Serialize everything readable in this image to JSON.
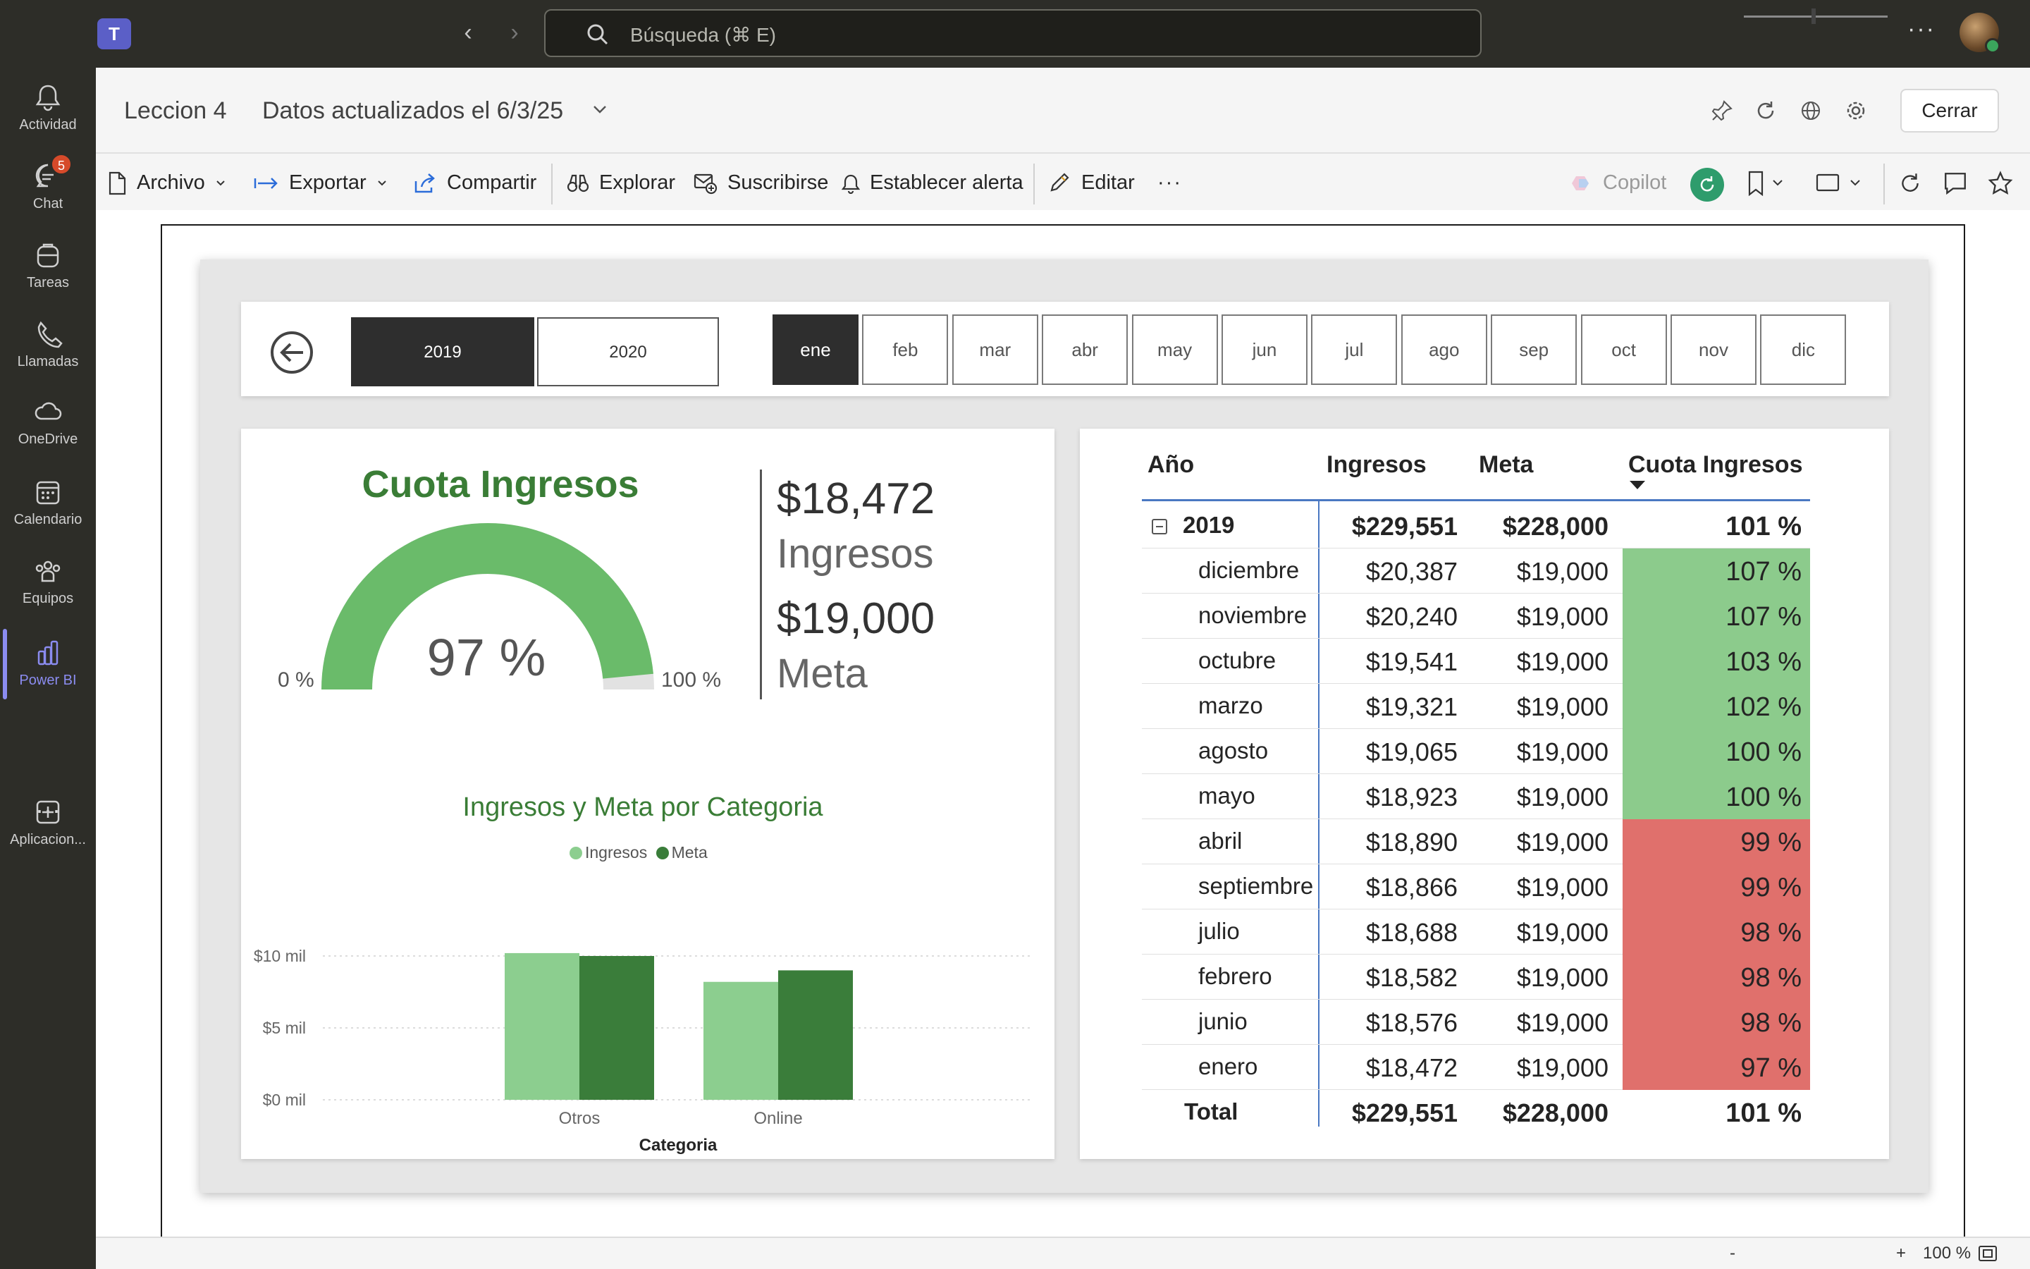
{
  "topbar": {
    "search_placeholder": "Búsqueda (⌘ E)",
    "more": "···"
  },
  "rail": {
    "items": [
      {
        "label": "Actividad"
      },
      {
        "label": "Chat",
        "badge": "5"
      },
      {
        "label": "Tareas"
      },
      {
        "label": "Llamadas"
      },
      {
        "label": "OneDrive"
      },
      {
        "label": "Calendario"
      },
      {
        "label": "Equipos"
      },
      {
        "label": "Power BI"
      },
      {
        "label": "Aplicacion..."
      }
    ],
    "more": "···"
  },
  "header": {
    "title": "Leccion 4",
    "date": "Datos actualizados el 6/3/25",
    "close_label": "Cerrar"
  },
  "toolbar": {
    "archivo": "Archivo",
    "exportar": "Exportar",
    "compartir": "Compartir",
    "explorar": "Explorar",
    "suscribirse": "Suscribirse",
    "alerta": "Establecer alerta",
    "editar": "Editar",
    "more": "···",
    "copilot": "Copilot"
  },
  "slicers": {
    "years": [
      "2019",
      "2020"
    ],
    "selected_year": "2019",
    "months": [
      "ene",
      "feb",
      "mar",
      "abr",
      "may",
      "jun",
      "jul",
      "ago",
      "sep",
      "oct",
      "nov",
      "dic"
    ],
    "selected_month": "ene"
  },
  "gauge": {
    "title": "Cuota Ingresos",
    "value_label": "97 %",
    "value": 0.97,
    "min_label": "0 %",
    "max_label": "100 %",
    "color": "#6abb6a"
  },
  "kpi": {
    "ingresos_value": "$18,472",
    "ingresos_label": "Ingresos",
    "meta_value": "$19,000",
    "meta_label": "Meta"
  },
  "chart_data": {
    "type": "bar",
    "title": "Ingresos y Meta por Categoria",
    "xlabel": "Categoria",
    "ylabel": "",
    "categories": [
      "Otros",
      "Online"
    ],
    "series": [
      {
        "name": "Ingresos",
        "values": [
          10200,
          8200
        ],
        "color": "#8cce8f"
      },
      {
        "name": "Meta",
        "values": [
          10000,
          9000
        ],
        "color": "#3a7d3a"
      }
    ],
    "ylim": [
      0,
      10000
    ],
    "yticks": [
      {
        "value": 0,
        "label": "$0 mil"
      },
      {
        "value": 5000,
        "label": "$5 mil"
      },
      {
        "value": 10000,
        "label": "$10 mil"
      }
    ],
    "legend": "top-center",
    "grid": true
  },
  "table": {
    "headers": {
      "year": "Año",
      "ingresos": "Ingresos",
      "meta": "Meta",
      "cuota": "Cuota Ingresos"
    },
    "group": {
      "name": "2019",
      "ingresos": "$229,551",
      "meta": "$228,000",
      "cuota": "101 %"
    },
    "rows": [
      {
        "name": "diciembre",
        "ingresos": "$20,387",
        "meta": "$19,000",
        "cuota": "107 %",
        "status": "good"
      },
      {
        "name": "noviembre",
        "ingresos": "$20,240",
        "meta": "$19,000",
        "cuota": "107 %",
        "status": "good"
      },
      {
        "name": "octubre",
        "ingresos": "$19,541",
        "meta": "$19,000",
        "cuota": "103 %",
        "status": "good"
      },
      {
        "name": "marzo",
        "ingresos": "$19,321",
        "meta": "$19,000",
        "cuota": "102 %",
        "status": "good"
      },
      {
        "name": "agosto",
        "ingresos": "$19,065",
        "meta": "$19,000",
        "cuota": "100 %",
        "status": "good"
      },
      {
        "name": "mayo",
        "ingresos": "$18,923",
        "meta": "$19,000",
        "cuota": "100 %",
        "status": "good"
      },
      {
        "name": "abril",
        "ingresos": "$18,890",
        "meta": "$19,000",
        "cuota": "99 %",
        "status": "bad"
      },
      {
        "name": "septiembre",
        "ingresos": "$18,866",
        "meta": "$19,000",
        "cuota": "99 %",
        "status": "bad"
      },
      {
        "name": "julio",
        "ingresos": "$18,688",
        "meta": "$19,000",
        "cuota": "98 %",
        "status": "bad"
      },
      {
        "name": "febrero",
        "ingresos": "$18,582",
        "meta": "$19,000",
        "cuota": "98 %",
        "status": "bad"
      },
      {
        "name": "junio",
        "ingresos": "$18,576",
        "meta": "$19,000",
        "cuota": "98 %",
        "status": "bad"
      },
      {
        "name": "enero",
        "ingresos": "$18,472",
        "meta": "$19,000",
        "cuota": "97 %",
        "status": "bad"
      }
    ],
    "total": {
      "name": "Total",
      "ingresos": "$229,551",
      "meta": "$228,000",
      "cuota": "101 %"
    },
    "good_color": "#8ccb8c",
    "bad_color": "#e0706c"
  },
  "status": {
    "zoom_minus": "-",
    "zoom_plus": "+",
    "zoom": "100 %"
  }
}
